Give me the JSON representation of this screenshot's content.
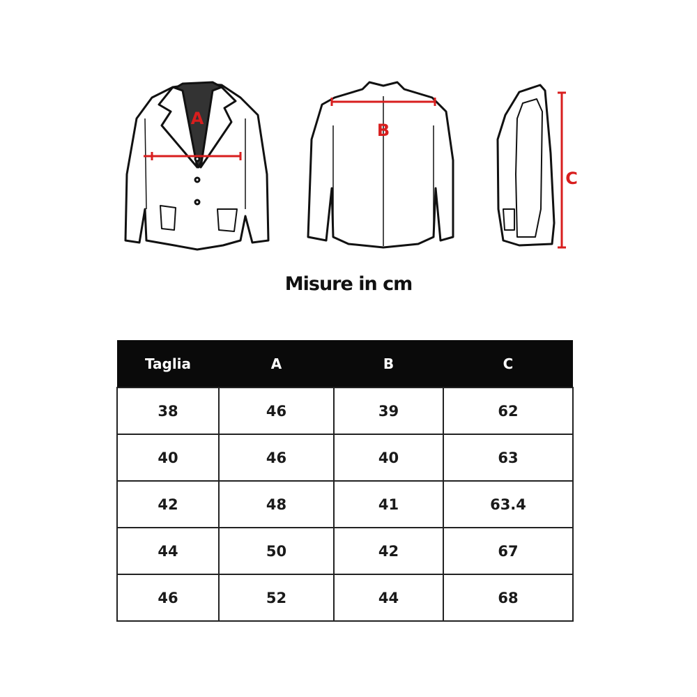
{
  "illustration": {
    "labels": {
      "a": "A",
      "b": "B",
      "c": "C"
    },
    "measure_color": "#d81e1e"
  },
  "title": "Misure in cm",
  "table": {
    "headers": [
      "Taglia",
      "A",
      "B",
      "C"
    ],
    "rows": [
      [
        "38",
        "46",
        "39",
        "62"
      ],
      [
        "40",
        "46",
        "40",
        "63"
      ],
      [
        "42",
        "48",
        "41",
        "63.4"
      ],
      [
        "44",
        "50",
        "42",
        "67"
      ],
      [
        "46",
        "52",
        "44",
        "68"
      ]
    ]
  }
}
